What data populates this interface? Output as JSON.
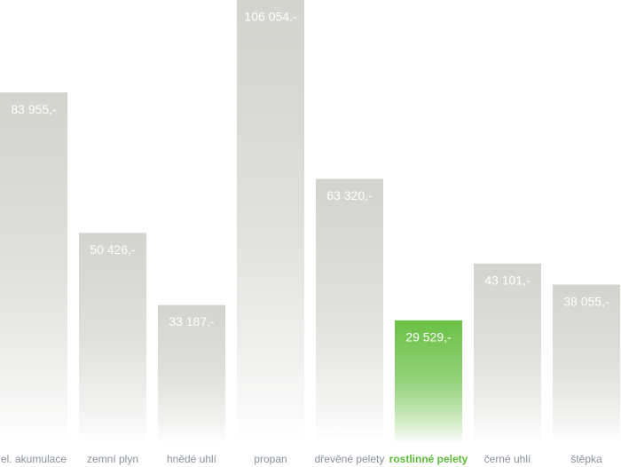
{
  "chart_data": {
    "type": "bar",
    "categories": [
      "el. akumulace",
      "zemní plyn",
      "hnědé uhlí",
      "propan",
      "dřevěné pelety",
      "rostlinné pelety",
      "černé uhlí",
      "štěpka"
    ],
    "values": [
      83955,
      50426,
      33187,
      106054,
      63320,
      29529,
      43101,
      38055
    ],
    "value_labels": [
      "83 955,-",
      "50 426,-",
      "33 187,-",
      "106 054,-",
      "63 320,-",
      "29 529,-",
      "43 101,-",
      "38 055,-"
    ],
    "colors": [
      "#d3d4ce",
      "#d3d4ce",
      "#d3d4ce",
      "#d3d4ce",
      "#d3d4ce",
      "#6ac146",
      "#d3d4ce",
      "#d3d4ce"
    ],
    "label_colors": [
      "#8a9099",
      "#8a9099",
      "#8a9099",
      "#8a9099",
      "#8a9099",
      "#5db83a",
      "#8a9099",
      "#8a9099"
    ]
  }
}
